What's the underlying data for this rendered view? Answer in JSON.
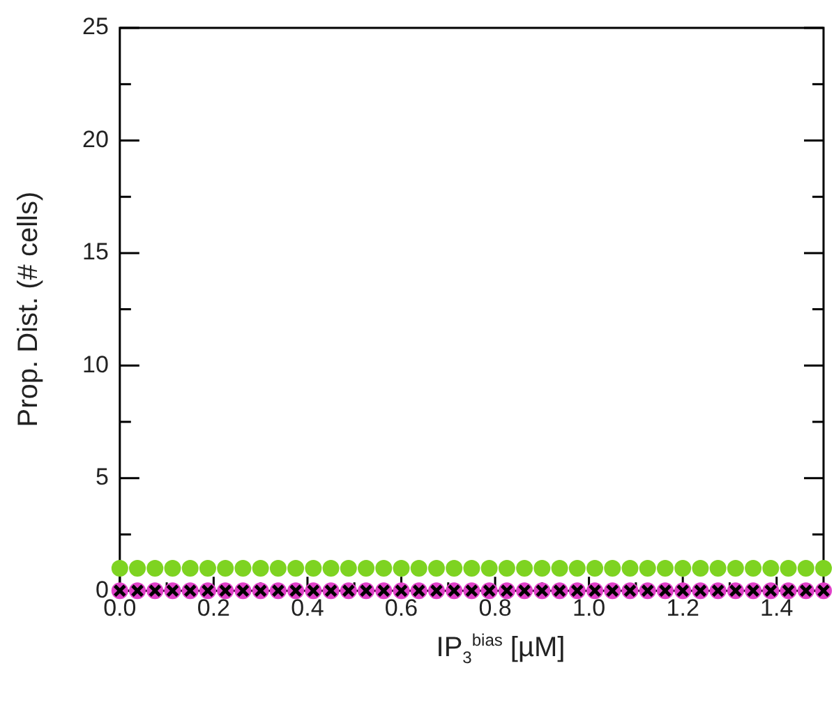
{
  "chart_data": {
    "type": "scatter",
    "xlabel": "IP$_{3}$$^{bias}$ [µM]",
    "ylabel": "Prop. Dist. (# cells)",
    "x": [
      0,
      0.0375,
      0.075,
      0.1125,
      0.15,
      0.1875,
      0.225,
      0.2625,
      0.3,
      0.3375,
      0.375,
      0.4125,
      0.45,
      0.4875,
      0.525,
      0.5625,
      0.6,
      0.6375,
      0.675,
      0.7125,
      0.75,
      0.7875,
      0.825,
      0.8625,
      0.9,
      0.9375,
      0.975,
      1.0125,
      1.05,
      1.0875,
      1.125,
      1.1625,
      1.2,
      1.2375,
      1.275,
      1.3125,
      1.35,
      1.3875,
      1.425,
      1.4625,
      1.5
    ],
    "series": [
      {
        "color": "#7ed321",
        "marker": "circle",
        "values": [
          1,
          1,
          1,
          1,
          1,
          1,
          1,
          1,
          1,
          1,
          1,
          1,
          1,
          1,
          1,
          1,
          1,
          1,
          1,
          1,
          1,
          1,
          1,
          1,
          1,
          1,
          1,
          1,
          1,
          1,
          1,
          1,
          1,
          1,
          1,
          1,
          1,
          1,
          1,
          1,
          1
        ]
      },
      {
        "color": "#e040c8",
        "marker": "circle",
        "values": [
          0,
          0,
          0,
          0,
          0,
          0,
          0,
          0,
          0,
          0,
          0,
          0,
          0,
          0,
          0,
          0,
          0,
          0,
          0,
          0,
          0,
          0,
          0,
          0,
          0,
          0,
          0,
          0,
          0,
          0,
          0,
          0,
          0,
          0,
          0,
          0,
          0,
          0,
          0,
          0,
          0
        ]
      },
      {
        "color": "#000000",
        "marker": "cross",
        "values": [
          0,
          0,
          0,
          0,
          0,
          0,
          0,
          0,
          0,
          0,
          0,
          0,
          0,
          0,
          0,
          0,
          0,
          0,
          0,
          0,
          0,
          0,
          0,
          0,
          0,
          0,
          0,
          0,
          0,
          0,
          0,
          0,
          0,
          0,
          0,
          0,
          0,
          0,
          0,
          0,
          0
        ]
      }
    ],
    "xlim": [
      0,
      1.5
    ],
    "xticks": [
      {
        "value": 0,
        "label": "0.0"
      },
      {
        "value": 0.1,
        "label": null
      },
      {
        "value": 0.2,
        "label": "0.2"
      },
      {
        "value": 0.3,
        "label": null
      },
      {
        "value": 0.4,
        "label": "0.4"
      },
      {
        "value": 0.5,
        "label": null
      },
      {
        "value": 0.6,
        "label": "0.6"
      },
      {
        "value": 0.7,
        "label": null
      },
      {
        "value": 0.8,
        "label": "0.8"
      },
      {
        "value": 0.9,
        "label": null
      },
      {
        "value": 1,
        "label": "1.0"
      },
      {
        "value": 1.1,
        "label": null
      },
      {
        "value": 1.2,
        "label": "1.2"
      },
      {
        "value": 1.3,
        "label": null
      },
      {
        "value": 1.4,
        "label": "1.4"
      },
      {
        "value": 1.5,
        "label": null
      }
    ],
    "ylim": [
      0,
      25
    ],
    "yticks": [
      0,
      {
        "value": 2.5,
        "label": null
      },
      5,
      {
        "value": 7.5,
        "label": null
      },
      10,
      {
        "value": 12.5,
        "label": null
      },
      15,
      {
        "value": 17.5,
        "label": null
      },
      20,
      {
        "value": 22.5,
        "label": null
      },
      25
    ],
    "grid": false,
    "legend": false
  }
}
